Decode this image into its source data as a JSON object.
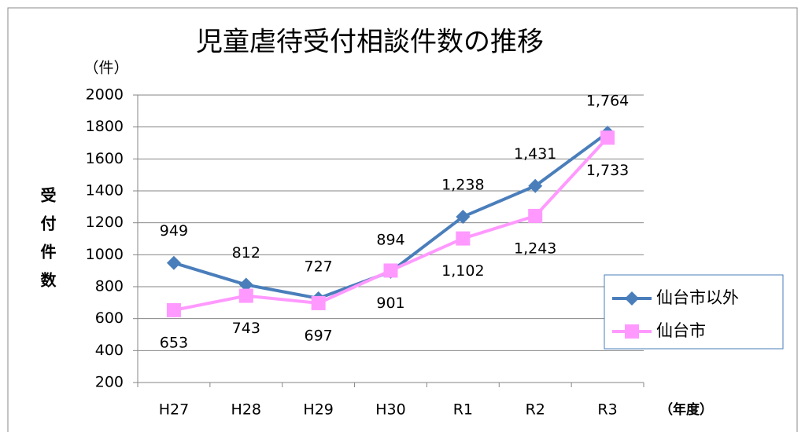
{
  "chart_data": {
    "type": "line",
    "title": "児童虐待受付相談件数の推移",
    "y_unit": "（件）",
    "y_label": "受付件数",
    "x_label": "（年度）",
    "categories": [
      "H27",
      "H28",
      "H29",
      "H30",
      "R1",
      "R2",
      "R3"
    ],
    "series": [
      {
        "name": "仙台市以外",
        "color": "#4a7ebb",
        "marker": "diamond",
        "values": [
          949,
          812,
          727,
          894,
          1238,
          1431,
          1764
        ],
        "value_labels": [
          "949",
          "812",
          "727",
          "894",
          "1,238",
          "1,431",
          "1,764"
        ]
      },
      {
        "name": "仙台市",
        "color": "#ff99ff",
        "marker": "square",
        "values": [
          653,
          743,
          697,
          901,
          1102,
          1243,
          1733
        ],
        "value_labels": [
          "653",
          "743",
          "697",
          "901",
          "1,102",
          "1,243",
          "1,733"
        ]
      }
    ],
    "ylim": [
      200,
      2000
    ],
    "yticks": [
      200,
      400,
      600,
      800,
      1000,
      1200,
      1400,
      1600,
      1800,
      2000
    ],
    "grid": true,
    "legend": "right"
  }
}
